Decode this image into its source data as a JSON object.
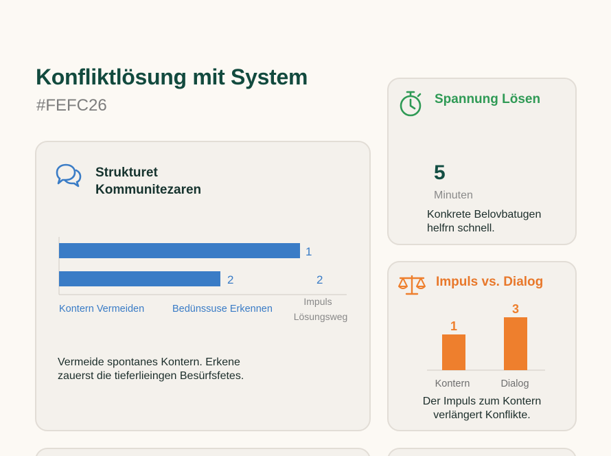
{
  "page": {
    "title": "Konfliktlösung mit System",
    "subtitle": "#FEFC26"
  },
  "main_card": {
    "title": "Strukturet Kommunitezaren",
    "icon": "speech-bubbles-icon",
    "text": "Vermeide spontanes Kontern. Erkene zauerst die tieferlieingen Besürfsfetes."
  },
  "spannung_card": {
    "title": "Spannung Lösen",
    "icon": "stopwatch-icon",
    "number": "5",
    "unit": "Minuten",
    "text": "Konkrete Belovbatugen helfrn schnell."
  },
  "impuls_card": {
    "title": "Impuls vs. Dialog",
    "icon": "scale-icon",
    "text": "Der Impuls zum Kontern verlängert Konflikte."
  },
  "colors": {
    "background": "#fcf9f4",
    "card": "#f4f1ec",
    "blue": "#3a7cc6",
    "green": "#2f9a55",
    "orange": "#ee7f2d",
    "dark_green": "#124a3e"
  },
  "chart_data": [
    {
      "type": "bar",
      "orientation": "horizontal",
      "bars": [
        {
          "value": 1,
          "label": "1",
          "length": 1.0
        },
        {
          "value": 2,
          "label": "2",
          "length": 0.67
        }
      ],
      "extra_label": "2",
      "categories": [
        "Kontern Vermeiden",
        "Bedünssuse Erkennen",
        "Impuls Lösungsweg"
      ]
    },
    {
      "type": "bar",
      "categories": [
        "Kontern",
        "Dialog"
      ],
      "values": [
        1,
        3
      ],
      "labels": [
        "1",
        "3"
      ],
      "heights": [
        0.68,
        1.0
      ]
    }
  ]
}
